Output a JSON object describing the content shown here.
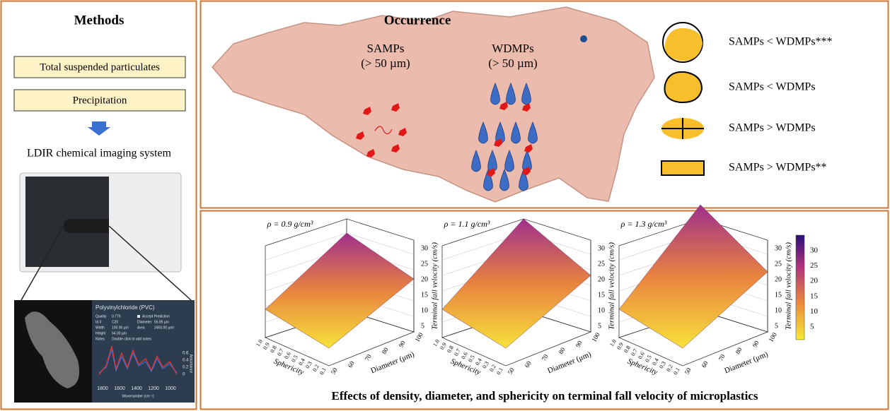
{
  "methods": {
    "title": "Methods",
    "steps": [
      "Total suspended particulates",
      "Precipitation"
    ],
    "system": "LDIR chemical imaging system",
    "inset": {
      "title": "Polyvinylchloride (PVC)",
      "fields": [
        [
          "Quality",
          "0.775"
        ],
        [
          "Id #",
          "C20"
        ],
        [
          "Width",
          "100.00 µm"
        ],
        [
          "Height",
          "54.00 µm"
        ],
        [
          "Notes",
          "Double click to add notes"
        ]
      ],
      "accept": "Accept Prediction",
      "fields2": [
        [
          "Diameter",
          "55.85 µm"
        ],
        [
          "Area",
          "2450.00 µm²"
        ]
      ],
      "x_ticks": [
        "1800",
        "1600",
        "1400",
        "1200",
        "1000"
      ],
      "x_label": "Wavenumber (cm⁻¹)",
      "y_ticks": [
        "0.6",
        "0.4",
        "0.2",
        "0"
      ],
      "y_label": "Absorbance"
    }
  },
  "occurrence": {
    "title": "Occurrence",
    "groups": [
      {
        "name": "SAMPs",
        "size": "(> 50 µm)"
      },
      {
        "name": "WDMPs",
        "size": "(> 50 µm)"
      }
    ],
    "legend": [
      "SAMPs < WDMPs***",
      "SAMPs < WDMPs",
      "SAMPs > WDMPs",
      "SAMPs > WDMPs**"
    ]
  },
  "effects": {
    "plots": [
      {
        "density": "ρ = 0.9 g/cm³"
      },
      {
        "density": "ρ = 1.1 g/cm³"
      },
      {
        "density": "ρ = 1.3 g/cm³"
      }
    ],
    "z_label": "Terminal fall velocity (cm/s)",
    "z_ticks": [
      "5",
      "10",
      "15",
      "20",
      "25",
      "30"
    ],
    "diameter_label": "Diameter (μm)",
    "diameter_ticks": [
      "50",
      "60",
      "70",
      "80",
      "90",
      "100"
    ],
    "sphericity_label": "Sphericity",
    "sphericity_ticks": [
      "1.0",
      "0.9",
      "0.8",
      "0.7",
      "0.6",
      "0.5",
      "0.4",
      "0.3",
      "0.2",
      "0.1"
    ],
    "colorbar_ticks": [
      "5",
      "10",
      "15",
      "20",
      "25",
      "30"
    ],
    "caption": "Effects of density, diameter, and sphericity on terminal fall velocity of microplastics"
  }
}
